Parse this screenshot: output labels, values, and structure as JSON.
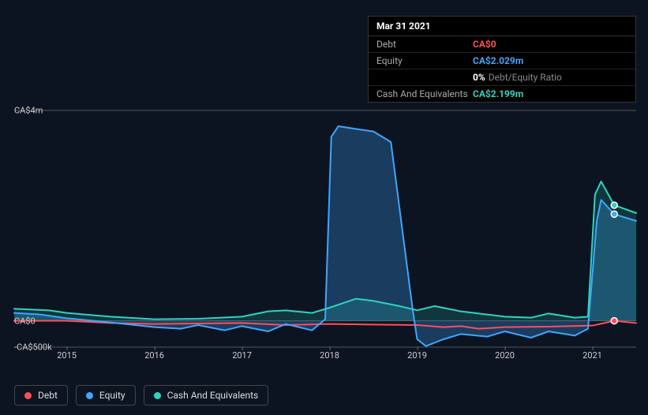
{
  "tooltip": {
    "date": "Mar 31 2021",
    "rows": [
      {
        "label": "Debt",
        "value": "CA$0",
        "color": "#ff4d5b"
      },
      {
        "label": "Equity",
        "value": "CA$2.029m",
        "color": "#3ea6ff"
      },
      {
        "label": "",
        "value": "0%",
        "suffix": "Debt/Equity Ratio",
        "color": "#ffffff"
      },
      {
        "label": "Cash And Equivalents",
        "value": "CA$2.199m",
        "color": "#2dd4bf"
      }
    ]
  },
  "chart": {
    "type": "line",
    "background_color": "#0d1421",
    "grid_color": "#2a3140",
    "axis_color": "#555555",
    "y": {
      "min": -500000,
      "max": 4000000,
      "ticks": [
        {
          "v": 4000000,
          "label": "CA$4m"
        },
        {
          "v": 0,
          "label": "CA$0"
        },
        {
          "v": -500000,
          "label": "-CA$500k"
        }
      ]
    },
    "x": {
      "min": 2014.4,
      "max": 2021.5,
      "ticks": [
        2015,
        2016,
        2017,
        2018,
        2019,
        2020,
        2021
      ],
      "marker": 2021.25
    },
    "series": [
      {
        "name": "Debt",
        "color": "#ff4d5b",
        "fill": false,
        "line_width": 2,
        "data": [
          [
            2014.4,
            0
          ],
          [
            2015,
            0
          ],
          [
            2015.5,
            -40000
          ],
          [
            2016,
            -60000
          ],
          [
            2016.5,
            -50000
          ],
          [
            2017,
            -40000
          ],
          [
            2017.5,
            -80000
          ],
          [
            2018,
            -60000
          ],
          [
            2018.5,
            -70000
          ],
          [
            2019,
            -80000
          ],
          [
            2019.3,
            -120000
          ],
          [
            2019.5,
            -100000
          ],
          [
            2019.7,
            -150000
          ],
          [
            2020,
            -120000
          ],
          [
            2020.5,
            -110000
          ],
          [
            2021,
            -90000
          ],
          [
            2021.25,
            0
          ],
          [
            2021.5,
            -40000
          ]
        ]
      },
      {
        "name": "Equity",
        "color": "#3ea6ff",
        "fill": true,
        "fill_opacity": 0.28,
        "line_width": 2,
        "data": [
          [
            2014.4,
            150000
          ],
          [
            2014.7,
            120000
          ],
          [
            2015,
            50000
          ],
          [
            2015.5,
            -30000
          ],
          [
            2016,
            -120000
          ],
          [
            2016.3,
            -150000
          ],
          [
            2016.5,
            -80000
          ],
          [
            2016.8,
            -180000
          ],
          [
            2017,
            -100000
          ],
          [
            2017.3,
            -200000
          ],
          [
            2017.5,
            -60000
          ],
          [
            2017.8,
            -180000
          ],
          [
            2017.95,
            30000
          ],
          [
            2018.02,
            3500000
          ],
          [
            2018.1,
            3700000
          ],
          [
            2018.3,
            3650000
          ],
          [
            2018.5,
            3600000
          ],
          [
            2018.7,
            3400000
          ],
          [
            2018.95,
            200000
          ],
          [
            2019.0,
            -350000
          ],
          [
            2019.1,
            -480000
          ],
          [
            2019.3,
            -350000
          ],
          [
            2019.5,
            -250000
          ],
          [
            2019.8,
            -300000
          ],
          [
            2020,
            -200000
          ],
          [
            2020.3,
            -320000
          ],
          [
            2020.5,
            -200000
          ],
          [
            2020.8,
            -280000
          ],
          [
            2020.95,
            -150000
          ],
          [
            2021.05,
            1900000
          ],
          [
            2021.1,
            2300000
          ],
          [
            2021.25,
            2029000
          ],
          [
            2021.5,
            1900000
          ]
        ]
      },
      {
        "name": "Cash And Equivalents",
        "color": "#2dd4bf",
        "fill": true,
        "fill_opacity": 0.18,
        "line_width": 2,
        "data": [
          [
            2014.4,
            230000
          ],
          [
            2014.8,
            200000
          ],
          [
            2015,
            150000
          ],
          [
            2015.5,
            80000
          ],
          [
            2016,
            30000
          ],
          [
            2016.5,
            40000
          ],
          [
            2017,
            80000
          ],
          [
            2017.3,
            180000
          ],
          [
            2017.5,
            200000
          ],
          [
            2017.8,
            150000
          ],
          [
            2018,
            250000
          ],
          [
            2018.3,
            420000
          ],
          [
            2018.5,
            380000
          ],
          [
            2018.8,
            280000
          ],
          [
            2019,
            200000
          ],
          [
            2019.2,
            280000
          ],
          [
            2019.5,
            180000
          ],
          [
            2019.8,
            120000
          ],
          [
            2020,
            80000
          ],
          [
            2020.3,
            60000
          ],
          [
            2020.5,
            140000
          ],
          [
            2020.8,
            60000
          ],
          [
            2020.95,
            80000
          ],
          [
            2021.03,
            2400000
          ],
          [
            2021.1,
            2650000
          ],
          [
            2021.25,
            2199000
          ],
          [
            2021.5,
            2050000
          ]
        ]
      }
    ]
  },
  "legend": {
    "items": [
      {
        "label": "Debt",
        "color": "#ff4d5b"
      },
      {
        "label": "Equity",
        "color": "#3ea6ff"
      },
      {
        "label": "Cash And Equivalents",
        "color": "#2dd4bf"
      }
    ]
  }
}
